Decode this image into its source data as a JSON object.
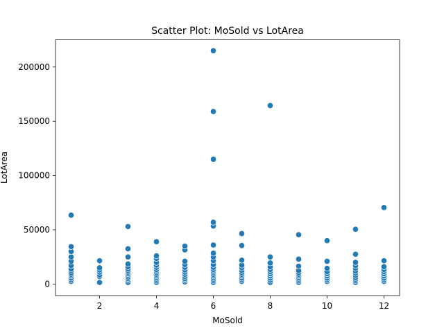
{
  "chart_data": {
    "type": "scatter",
    "title": "Scatter Plot: MoSold vs LotArea",
    "xlabel": "MoSold",
    "ylabel": "LotArea",
    "xlim": [
      0.45,
      12.55
    ],
    "ylim": [
      -10700,
      225000
    ],
    "xticks": [
      2,
      4,
      6,
      8,
      10,
      12
    ],
    "xtick_labels": [
      "2",
      "4",
      "6",
      "8",
      "10",
      "12"
    ],
    "yticks": [
      0,
      50000,
      100000,
      150000,
      200000
    ],
    "ytick_labels": [
      "0",
      "50000",
      "100000",
      "150000",
      "200000"
    ],
    "grid": false,
    "legend": false,
    "marker_color": "#1f77b4",
    "series": [
      {
        "points": [
          {
            "x": 1,
            "y": 2500
          },
          {
            "x": 1,
            "y": 4000
          },
          {
            "x": 1,
            "y": 5500
          },
          {
            "x": 1,
            "y": 7500
          },
          {
            "x": 1,
            "y": 9000
          },
          {
            "x": 1,
            "y": 10500
          },
          {
            "x": 1,
            "y": 12500
          },
          {
            "x": 1,
            "y": 14000
          },
          {
            "x": 1,
            "y": 17000
          },
          {
            "x": 1,
            "y": 21000
          },
          {
            "x": 1,
            "y": 25000
          },
          {
            "x": 1,
            "y": 30000
          },
          {
            "x": 1,
            "y": 34500
          },
          {
            "x": 1,
            "y": 63500
          },
          {
            "x": 2,
            "y": 1500
          },
          {
            "x": 2,
            "y": 7000
          },
          {
            "x": 2,
            "y": 8500
          },
          {
            "x": 2,
            "y": 11000
          },
          {
            "x": 2,
            "y": 13000
          },
          {
            "x": 2,
            "y": 15000
          },
          {
            "x": 2,
            "y": 21500
          },
          {
            "x": 3,
            "y": 1500
          },
          {
            "x": 3,
            "y": 3500
          },
          {
            "x": 3,
            "y": 5000
          },
          {
            "x": 3,
            "y": 6500
          },
          {
            "x": 3,
            "y": 8000
          },
          {
            "x": 3,
            "y": 9500
          },
          {
            "x": 3,
            "y": 11000
          },
          {
            "x": 3,
            "y": 12500
          },
          {
            "x": 3,
            "y": 14000
          },
          {
            "x": 3,
            "y": 16000
          },
          {
            "x": 3,
            "y": 18500
          },
          {
            "x": 3,
            "y": 25000
          },
          {
            "x": 3,
            "y": 32500
          },
          {
            "x": 3,
            "y": 53000
          },
          {
            "x": 4,
            "y": 1500
          },
          {
            "x": 4,
            "y": 3000
          },
          {
            "x": 4,
            "y": 4500
          },
          {
            "x": 4,
            "y": 6000
          },
          {
            "x": 4,
            "y": 7500
          },
          {
            "x": 4,
            "y": 9000
          },
          {
            "x": 4,
            "y": 10500
          },
          {
            "x": 4,
            "y": 12000
          },
          {
            "x": 4,
            "y": 13500
          },
          {
            "x": 4,
            "y": 15500
          },
          {
            "x": 4,
            "y": 17500
          },
          {
            "x": 4,
            "y": 20000
          },
          {
            "x": 4,
            "y": 23500
          },
          {
            "x": 4,
            "y": 26000
          },
          {
            "x": 4,
            "y": 39000
          },
          {
            "x": 5,
            "y": 2000
          },
          {
            "x": 5,
            "y": 3500
          },
          {
            "x": 5,
            "y": 5000
          },
          {
            "x": 5,
            "y": 7000
          },
          {
            "x": 5,
            "y": 9000
          },
          {
            "x": 5,
            "y": 11000
          },
          {
            "x": 5,
            "y": 13000
          },
          {
            "x": 5,
            "y": 15500
          },
          {
            "x": 5,
            "y": 18000
          },
          {
            "x": 5,
            "y": 21000
          },
          {
            "x": 5,
            "y": 31500
          },
          {
            "x": 5,
            "y": 35000
          },
          {
            "x": 6,
            "y": 1500
          },
          {
            "x": 6,
            "y": 3000
          },
          {
            "x": 6,
            "y": 4500
          },
          {
            "x": 6,
            "y": 6000
          },
          {
            "x": 6,
            "y": 7500
          },
          {
            "x": 6,
            "y": 9000
          },
          {
            "x": 6,
            "y": 10500
          },
          {
            "x": 6,
            "y": 12000
          },
          {
            "x": 6,
            "y": 13500
          },
          {
            "x": 6,
            "y": 15500
          },
          {
            "x": 6,
            "y": 18000
          },
          {
            "x": 6,
            "y": 21500
          },
          {
            "x": 6,
            "y": 25000
          },
          {
            "x": 6,
            "y": 28500
          },
          {
            "x": 6,
            "y": 36000
          },
          {
            "x": 6,
            "y": 53500
          },
          {
            "x": 6,
            "y": 57000
          },
          {
            "x": 6,
            "y": 115000
          },
          {
            "x": 6,
            "y": 159000
          },
          {
            "x": 6,
            "y": 215000
          },
          {
            "x": 7,
            "y": 2500
          },
          {
            "x": 7,
            "y": 4000
          },
          {
            "x": 7,
            "y": 5500
          },
          {
            "x": 7,
            "y": 7500
          },
          {
            "x": 7,
            "y": 9000
          },
          {
            "x": 7,
            "y": 10500
          },
          {
            "x": 7,
            "y": 12500
          },
          {
            "x": 7,
            "y": 15000
          },
          {
            "x": 7,
            "y": 17500
          },
          {
            "x": 7,
            "y": 22000
          },
          {
            "x": 7,
            "y": 35500
          },
          {
            "x": 7,
            "y": 46500
          },
          {
            "x": 8,
            "y": 1500
          },
          {
            "x": 8,
            "y": 3500
          },
          {
            "x": 8,
            "y": 5500
          },
          {
            "x": 8,
            "y": 7500
          },
          {
            "x": 8,
            "y": 9500
          },
          {
            "x": 8,
            "y": 11500
          },
          {
            "x": 8,
            "y": 13500
          },
          {
            "x": 8,
            "y": 16000
          },
          {
            "x": 8,
            "y": 19500
          },
          {
            "x": 8,
            "y": 25000
          },
          {
            "x": 8,
            "y": 164500
          },
          {
            "x": 9,
            "y": 1500
          },
          {
            "x": 9,
            "y": 3000
          },
          {
            "x": 9,
            "y": 4500
          },
          {
            "x": 9,
            "y": 6000
          },
          {
            "x": 9,
            "y": 7500
          },
          {
            "x": 9,
            "y": 9000
          },
          {
            "x": 9,
            "y": 10500
          },
          {
            "x": 9,
            "y": 12500
          },
          {
            "x": 9,
            "y": 16500
          },
          {
            "x": 9,
            "y": 23000
          },
          {
            "x": 9,
            "y": 45500
          },
          {
            "x": 10,
            "y": 2500
          },
          {
            "x": 10,
            "y": 4000
          },
          {
            "x": 10,
            "y": 5500
          },
          {
            "x": 10,
            "y": 7500
          },
          {
            "x": 10,
            "y": 9500
          },
          {
            "x": 10,
            "y": 11500
          },
          {
            "x": 10,
            "y": 14500
          },
          {
            "x": 10,
            "y": 21000
          },
          {
            "x": 10,
            "y": 40000
          },
          {
            "x": 11,
            "y": 1500
          },
          {
            "x": 11,
            "y": 3000
          },
          {
            "x": 11,
            "y": 4500
          },
          {
            "x": 11,
            "y": 6000
          },
          {
            "x": 11,
            "y": 8000
          },
          {
            "x": 11,
            "y": 10000
          },
          {
            "x": 11,
            "y": 12000
          },
          {
            "x": 11,
            "y": 14500
          },
          {
            "x": 11,
            "y": 17000
          },
          {
            "x": 11,
            "y": 20000
          },
          {
            "x": 11,
            "y": 27500
          },
          {
            "x": 11,
            "y": 50500
          },
          {
            "x": 12,
            "y": 2500
          },
          {
            "x": 12,
            "y": 4000
          },
          {
            "x": 12,
            "y": 5500
          },
          {
            "x": 12,
            "y": 7500
          },
          {
            "x": 12,
            "y": 9500
          },
          {
            "x": 12,
            "y": 11500
          },
          {
            "x": 12,
            "y": 13500
          },
          {
            "x": 12,
            "y": 16000
          },
          {
            "x": 12,
            "y": 21500
          },
          {
            "x": 12,
            "y": 70500
          }
        ]
      }
    ]
  }
}
